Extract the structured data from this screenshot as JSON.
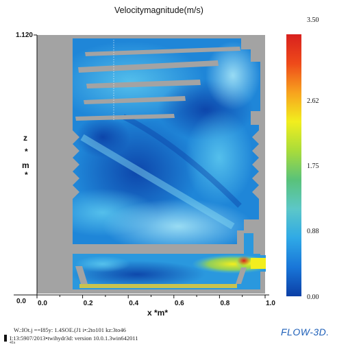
{
  "chart_data": {
    "type": "heatmap",
    "title": "Velocitymagnitude(m/s)",
    "xlabel": "x *m*",
    "ylabel": "z * m *",
    "xlim": [
      0.0,
      1.0
    ],
    "ylim": [
      0.0,
      1.12
    ],
    "x_ticks": [
      0.0,
      0.2,
      0.4,
      0.6,
      0.8,
      1.0
    ],
    "x_tick_labels": [
      "0.0",
      "0.2",
      "0.4",
      "0.6",
      "0.8",
      "1.0"
    ],
    "y_tick_labels": [
      "0.0",
      "1.120"
    ],
    "colorbar": {
      "range": [
        0.0,
        3.5
      ],
      "ticks": [
        3.5,
        2.62,
        1.75,
        0.88,
        0.0
      ],
      "tick_labels": [
        "3.50",
        "2.62",
        "1.75",
        "0.88",
        "0.00"
      ],
      "colors": [
        "#0b3fa6",
        "#1976d8",
        "#2fa9e6",
        "#5cc7c8",
        "#59c27a",
        "#a9dc3a",
        "#f2ee1e",
        "#f7a21e",
        "#ee4a1a",
        "#d8201e"
      ]
    }
  },
  "footer": {
    "line1": "W.:IOt.j ==I85y: 1.4SOE.(J1 i•:2to101 kz:3to46",
    "line2": "I:13:5907/2013•twihydr3d: version 10.0.1.3win642011",
    "line3": "41s"
  },
  "brand": "FLOW-3D."
}
